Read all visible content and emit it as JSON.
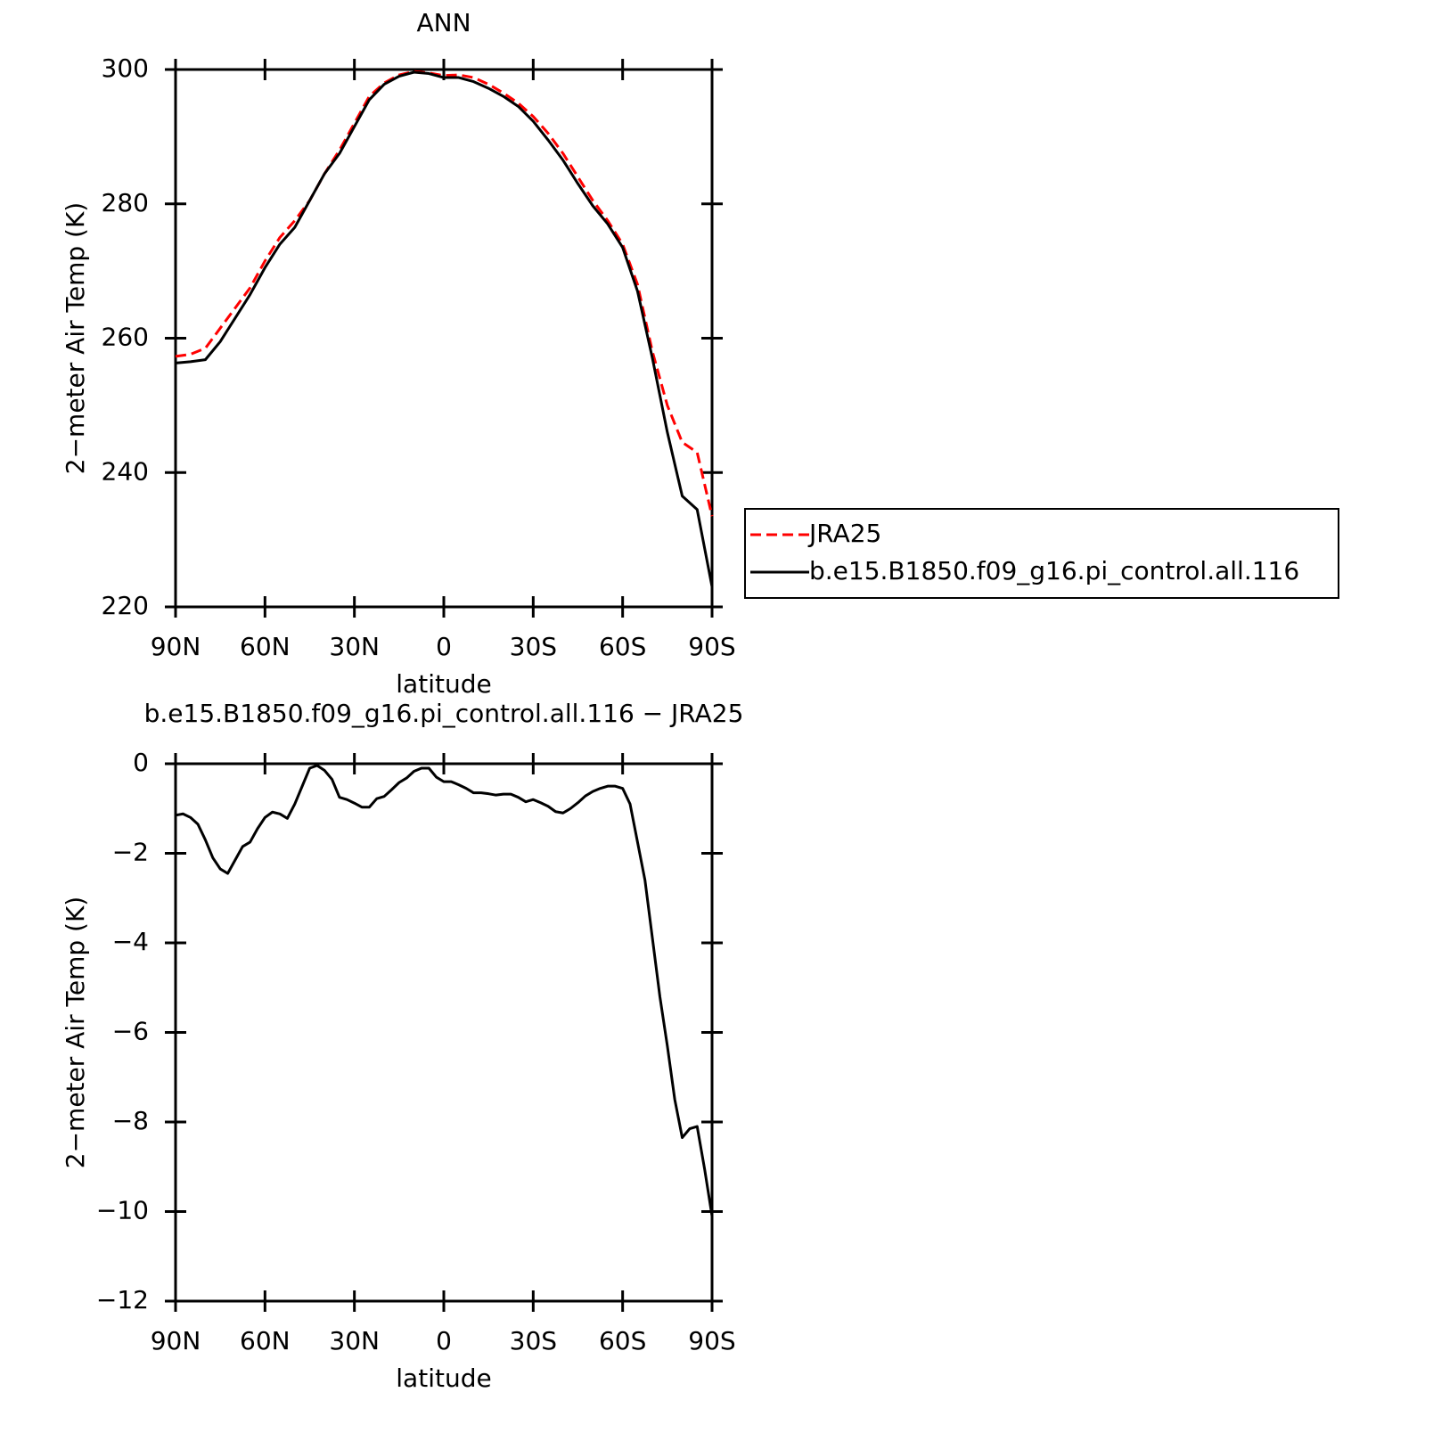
{
  "chart_data": [
    {
      "type": "line",
      "title": "ANN",
      "xlabel": "latitude",
      "ylabel": "2−meter Air Temp (K)",
      "x": [
        90,
        85,
        80,
        75,
        70,
        65,
        60,
        55,
        50,
        45,
        40,
        35,
        30,
        25,
        20,
        15,
        10,
        5,
        0,
        -5,
        -10,
        -15,
        -20,
        -25,
        -30,
        -35,
        -40,
        -45,
        -50,
        -55,
        -60,
        -65,
        -70,
        -75,
        -80,
        -85,
        -90
      ],
      "series": [
        {
          "name": "JRA25",
          "color": "#ff0000",
          "dash": true,
          "values": [
            257.3,
            257.6,
            258.5,
            261.5,
            264.5,
            267.5,
            271.5,
            275,
            277.5,
            280.5,
            284.5,
            288,
            292,
            296,
            298,
            299.2,
            299.7,
            299.5,
            299.1,
            299.2,
            298.8,
            297.8,
            296.5,
            295,
            293,
            290.5,
            287.5,
            284,
            280.5,
            277.5,
            274,
            268,
            258,
            250,
            244.5,
            243,
            233.5
          ]
        },
        {
          "name": "b.e15.B1850.f09_g16.pi_control.all.116",
          "color": "#000000",
          "dash": false,
          "values": [
            256.3,
            256.5,
            256.8,
            259.5,
            263,
            266.5,
            270.5,
            274,
            276.5,
            280.5,
            284.5,
            287.5,
            291.5,
            295.5,
            297.8,
            299,
            299.6,
            299.4,
            298.8,
            298.8,
            298.2,
            297.2,
            296,
            294.5,
            292.3,
            289.5,
            286.5,
            283,
            279.7,
            277,
            273.5,
            267,
            257,
            246,
            236.5,
            234.5,
            223
          ]
        }
      ],
      "xlim": [
        90,
        -90
      ],
      "xticks": [
        {
          "value": 90,
          "label": "90N"
        },
        {
          "value": 60,
          "label": "60N"
        },
        {
          "value": 30,
          "label": "30N"
        },
        0,
        {
          "value": -30,
          "label": "30S"
        },
        {
          "value": -60,
          "label": "60S"
        },
        {
          "value": -90,
          "label": "90S"
        }
      ],
      "ylim": [
        220,
        300
      ],
      "yticks": [
        220,
        240,
        260,
        280,
        300
      ],
      "legend": "outside-right"
    },
    {
      "type": "line",
      "title": "b.e15.B1850.f09_g16.pi_control.all.116 − JRA25",
      "xlabel": "latitude",
      "ylabel": "2−meter Air Temp (K)",
      "x": [
        90,
        87.5,
        85,
        82.5,
        80,
        77.5,
        75,
        72.5,
        70,
        67.5,
        65,
        62.5,
        60,
        57.5,
        55,
        52.5,
        50,
        47.5,
        45,
        42.5,
        40,
        37.5,
        35,
        32.5,
        30,
        27.5,
        25,
        22.5,
        20,
        17.5,
        15,
        12.5,
        10,
        7.5,
        5,
        2.5,
        0,
        -2.5,
        -5,
        -7.5,
        -10,
        -12.5,
        -15,
        -17.5,
        -20,
        -22.5,
        -25,
        -27.5,
        -30,
        -32.5,
        -35,
        -37.5,
        -40,
        -42.5,
        -45,
        -47.5,
        -50,
        -52.5,
        -55,
        -57.5,
        -60,
        -62.5,
        -65,
        -67.5,
        -70,
        -72.5,
        -75,
        -77.5,
        -80,
        -82.5,
        -85,
        -87.5,
        -90
      ],
      "series": [
        {
          "color": "#000000",
          "dash": false,
          "values": [
            -1.15,
            -1.12,
            -1.2,
            -1.35,
            -1.7,
            -2.1,
            -2.35,
            -2.45,
            -2.15,
            -1.85,
            -1.75,
            -1.45,
            -1.2,
            -1.08,
            -1.12,
            -1.22,
            -0.9,
            -0.5,
            -0.1,
            -0.04,
            -0.15,
            -0.35,
            -0.75,
            -0.8,
            -0.88,
            -0.97,
            -0.97,
            -0.78,
            -0.73,
            -0.58,
            -0.42,
            -0.32,
            -0.17,
            -0.1,
            -0.1,
            -0.3,
            -0.4,
            -0.4,
            -0.47,
            -0.55,
            -0.65,
            -0.65,
            -0.67,
            -0.7,
            -0.68,
            -0.68,
            -0.75,
            -0.85,
            -0.8,
            -0.87,
            -0.95,
            -1.07,
            -1.1,
            -1.0,
            -0.87,
            -0.72,
            -0.62,
            -0.55,
            -0.5,
            -0.5,
            -0.55,
            -0.9,
            -1.75,
            -2.6,
            -3.9,
            -5.2,
            -6.3,
            -7.5,
            -8.35,
            -8.15,
            -8.1,
            -9.05,
            -10.1
          ]
        }
      ],
      "xlim": [
        90,
        -90
      ],
      "xticks": [
        {
          "value": 90,
          "label": "90N"
        },
        {
          "value": 60,
          "label": "60N"
        },
        {
          "value": 30,
          "label": "30N"
        },
        0,
        {
          "value": -30,
          "label": "30S"
        },
        {
          "value": -60,
          "label": "60S"
        },
        {
          "value": -90,
          "label": "90S"
        }
      ],
      "ylim": [
        -12,
        0
      ],
      "yticks": [
        {
          "value": -12,
          "label": "−12"
        },
        {
          "value": -10,
          "label": "−10"
        },
        {
          "value": -8,
          "label": "−8"
        },
        {
          "value": -6,
          "label": "−6"
        },
        {
          "value": -4,
          "label": "−4"
        },
        {
          "value": -2,
          "label": "−2"
        },
        0
      ]
    }
  ]
}
